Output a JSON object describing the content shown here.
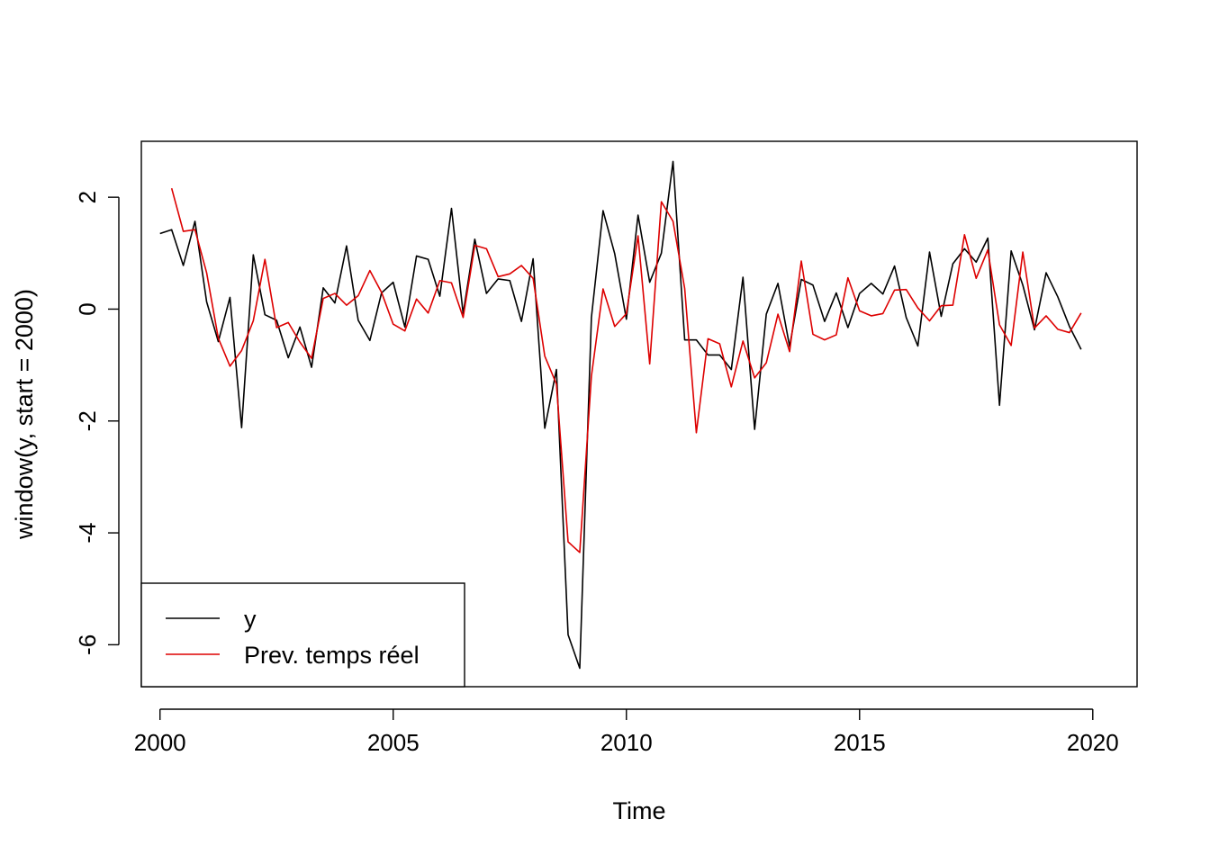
{
  "chart_data": {
    "type": "line",
    "title": "",
    "xlabel": "Time",
    "ylabel": "window(y, start = 2000)",
    "xlim": [
      1999.6,
      2020.95
    ],
    "ylim": [
      -6.75,
      3.0
    ],
    "x_ticks": [
      "2000",
      "2005",
      "2010",
      "2015",
      "2020"
    ],
    "y_ticks": [
      "2",
      "0",
      "-2",
      "-4",
      "-6"
    ],
    "grid": false,
    "legend_position": "bottom-left",
    "series": [
      {
        "name": "y",
        "color": "#000000",
        "start": 2000.0,
        "step": 0.25,
        "values": [
          1.35,
          1.42,
          0.78,
          1.57,
          0.13,
          -0.58,
          0.21,
          -2.12,
          0.97,
          -0.1,
          -0.2,
          -0.87,
          -0.32,
          -1.04,
          0.38,
          0.11,
          1.13,
          -0.2,
          -0.56,
          0.29,
          0.48,
          -0.32,
          0.95,
          0.89,
          0.23,
          1.8,
          -0.08,
          1.25,
          0.28,
          0.54,
          0.51,
          -0.22,
          0.9,
          -2.13,
          -1.08,
          -5.82,
          -6.42,
          -0.15,
          1.76,
          0.99,
          -0.18,
          1.68,
          0.48,
          1.0,
          2.64,
          -0.55,
          -0.55,
          -0.82,
          -0.82,
          -1.08,
          0.57,
          -2.15,
          -0.09,
          0.46,
          -0.67,
          0.53,
          0.43,
          -0.22,
          0.29,
          -0.33,
          0.28,
          0.46,
          0.27,
          0.77,
          -0.15,
          -0.66,
          1.02,
          -0.13,
          0.81,
          1.08,
          0.84,
          1.27,
          -1.72,
          1.04,
          0.43,
          -0.37,
          0.65,
          0.22,
          -0.31,
          -0.72
        ]
      },
      {
        "name": "Prev. temps réel",
        "color": "#dd0000",
        "start": 2000.25,
        "step": 0.25,
        "values": [
          2.16,
          1.39,
          1.42,
          0.65,
          -0.52,
          -1.02,
          -0.74,
          -0.21,
          0.89,
          -0.33,
          -0.24,
          -0.59,
          -0.88,
          0.19,
          0.28,
          0.07,
          0.24,
          0.69,
          0.3,
          -0.27,
          -0.39,
          0.18,
          -0.07,
          0.51,
          0.47,
          -0.15,
          1.14,
          1.08,
          0.58,
          0.63,
          0.78,
          0.55,
          -0.84,
          -1.34,
          -4.16,
          -4.35,
          -1.2,
          0.36,
          -0.31,
          -0.08,
          1.31,
          -0.98,
          1.92,
          1.57,
          0.37,
          -2.21,
          -0.53,
          -0.62,
          -1.39,
          -0.57,
          -1.23,
          -0.96,
          -0.09,
          -0.76,
          0.86,
          -0.45,
          -0.55,
          -0.46,
          0.56,
          -0.03,
          -0.12,
          -0.08,
          0.34,
          0.35,
          0.02,
          -0.21,
          0.06,
          0.07,
          1.33,
          0.55,
          1.06,
          -0.28,
          -0.65,
          1.02,
          -0.34,
          -0.12,
          -0.36,
          -0.42,
          -0.07
        ]
      }
    ]
  }
}
